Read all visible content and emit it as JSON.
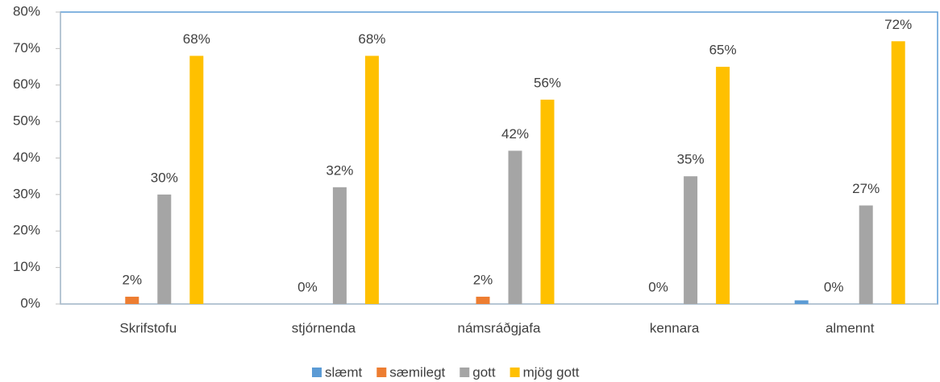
{
  "chart_data": {
    "type": "bar",
    "categories": [
      "Skrifstofu",
      "stjórnenda",
      "námsráðgjafa",
      "kennara",
      "almennt"
    ],
    "series": [
      {
        "name": "slæmt",
        "color": "#5b9bd5",
        "values": [
          0,
          0,
          0,
          0,
          1
        ]
      },
      {
        "name": "sæmilegt",
        "color": "#ed7d31",
        "values": [
          2,
          0,
          2,
          0,
          0
        ],
        "value_labels": [
          "2%",
          "0%",
          "2%",
          "0%",
          "0%"
        ]
      },
      {
        "name": "gott",
        "color": "#a5a5a5",
        "values": [
          30,
          32,
          42,
          35,
          27
        ],
        "value_labels": [
          "30%",
          "32%",
          "42%",
          "35%",
          "27%"
        ]
      },
      {
        "name": "mjög gott",
        "color": "#ffc000",
        "values": [
          68,
          68,
          56,
          65,
          72
        ],
        "value_labels": [
          "68%",
          "68%",
          "56%",
          "65%",
          "72%"
        ]
      }
    ],
    "ylim": [
      0,
      80
    ],
    "yticks": [
      {
        "value": 0,
        "label": "0%"
      },
      {
        "value": 10,
        "label": "10%"
      },
      {
        "value": 20,
        "label": "20%"
      },
      {
        "value": 30,
        "label": "30%"
      },
      {
        "value": 40,
        "label": "40%"
      },
      {
        "value": 50,
        "label": "50%"
      },
      {
        "value": 60,
        "label": "60%"
      },
      {
        "value": 70,
        "label": "70%"
      },
      {
        "value": 80,
        "label": "80%"
      }
    ],
    "legend": "bottom"
  }
}
